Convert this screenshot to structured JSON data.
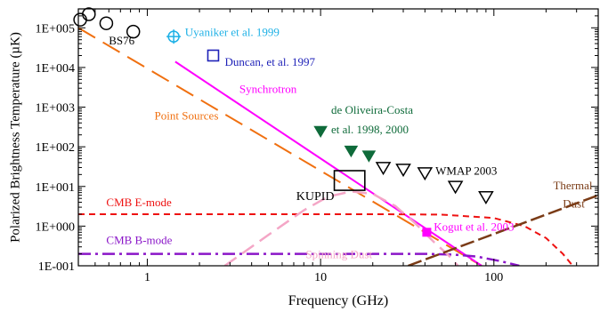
{
  "chart_data": {
    "type": "line",
    "xlabel": "Frequency (GHz)",
    "ylabel": "Polarized Brightness Temperature (µK)",
    "xscale": "log",
    "yscale": "log",
    "xlim": [
      0.4,
      400
    ],
    "ylim": [
      0.1,
      300000
    ],
    "grid": false,
    "x_ticks": [
      {
        "value": 1,
        "label": "1"
      },
      {
        "value": 10,
        "label": "10"
      },
      {
        "value": 100,
        "label": "100"
      }
    ],
    "y_ticks": [
      {
        "value": 100000,
        "label": "1E+005"
      },
      {
        "value": 10000,
        "label": "1E+004"
      },
      {
        "value": 1000,
        "label": "1E+003"
      },
      {
        "value": 100,
        "label": "1E+002"
      },
      {
        "value": 10,
        "label": "1E+001"
      },
      {
        "value": 1,
        "label": "1E+000"
      },
      {
        "value": 0.1,
        "label": "1E-001"
      }
    ],
    "series": [
      {
        "id": "point-sources",
        "color": "#f07010",
        "dash": "22,10",
        "width": 2,
        "points": [
          [
            0.4,
            100000
          ],
          [
            85,
            0.1
          ]
        ]
      },
      {
        "id": "synchrotron",
        "color": "#ff00ff",
        "dash": "",
        "width": 2,
        "points": [
          [
            1.45,
            14000
          ],
          [
            85,
            0.1
          ]
        ]
      },
      {
        "id": "cmb-e-mode",
        "color": "#ee1111",
        "dash": "7,5",
        "width": 2,
        "points": [
          [
            0.4,
            2
          ],
          [
            20,
            2
          ],
          [
            50,
            1.95
          ],
          [
            100,
            1.6
          ],
          [
            150,
            1.0
          ],
          [
            200,
            0.5
          ],
          [
            250,
            0.2
          ],
          [
            285,
            0.1
          ]
        ]
      },
      {
        "id": "cmb-b-mode",
        "color": "#8a16c8",
        "dash": "14,5,3,5",
        "width": 2.5,
        "points": [
          [
            0.4,
            0.2
          ],
          [
            40,
            0.2
          ],
          [
            60,
            0.19
          ],
          [
            80,
            0.17
          ],
          [
            110,
            0.13
          ],
          [
            140,
            0.1
          ]
        ]
      },
      {
        "id": "spinning-dust",
        "color": "#f4a6c6",
        "dash": "16,8",
        "width": 2.5,
        "points": [
          [
            2.8,
            0.1
          ],
          [
            5,
            0.6
          ],
          [
            8,
            2.5
          ],
          [
            11,
            5.5
          ],
          [
            15,
            7.5
          ],
          [
            20,
            6.5
          ],
          [
            27,
            3.2
          ],
          [
            35,
            1.2
          ],
          [
            45,
            0.4
          ],
          [
            55,
            0.18
          ],
          [
            62,
            0.1
          ]
        ]
      },
      {
        "id": "thermal-dust",
        "color": "#7a3b16",
        "dash": "16,5",
        "width": 2.5,
        "points": [
          [
            32,
            0.1
          ],
          [
            400,
            6
          ]
        ]
      }
    ],
    "markers": [
      {
        "id": "bs76-points",
        "shape": "circle-open",
        "color": "#000000",
        "size": 14,
        "points": [
          [
            0.41,
            160000
          ],
          [
            0.46,
            220000
          ],
          [
            0.58,
            130000
          ],
          [
            0.83,
            80000
          ]
        ]
      },
      {
        "id": "uyaniker-point",
        "shape": "circle-plus",
        "color": "#1fb1e6",
        "size": 12,
        "points": [
          [
            1.42,
            60000
          ]
        ]
      },
      {
        "id": "duncan-point",
        "shape": "square-open",
        "color": "#1f22b8",
        "size": 12,
        "points": [
          [
            2.4,
            20000
          ]
        ]
      },
      {
        "id": "de-oliveira-costa-points",
        "shape": "triangle-down-filled",
        "color": "#0f6b3a",
        "size": 13,
        "points": [
          [
            10,
            250
          ],
          [
            15,
            80
          ],
          [
            19,
            60
          ]
        ]
      },
      {
        "id": "wmap-points",
        "shape": "triangle-down-open",
        "color": "#000000",
        "size": 15,
        "points": [
          [
            23,
            30
          ],
          [
            30,
            27
          ],
          [
            40,
            22
          ],
          [
            60,
            10
          ],
          [
            90,
            5.5
          ]
        ]
      },
      {
        "id": "kupid-box",
        "shape": "rect-open",
        "color": "#000000",
        "xrange": [
          12,
          18
        ],
        "yrange": [
          8,
          25
        ]
      },
      {
        "id": "kogut-point",
        "shape": "square-filled",
        "color": "#ff00ff",
        "size": 9,
        "points": [
          [
            41,
            0.7
          ]
        ]
      }
    ],
    "annotations": [
      {
        "id": "bs76-label",
        "text": "BS76",
        "color": "#000000",
        "x": 0.6,
        "y": 38000,
        "anchor": "start",
        "size": 13
      },
      {
        "id": "uyaniker-label",
        "text": "Uyaniker et al. 1999",
        "color": "#1fb1e6",
        "x": 1.65,
        "y": 62000,
        "anchor": "start",
        "size": 13
      },
      {
        "id": "duncan-label",
        "text": "Duncan, et al. 1997",
        "color": "#1f22b8",
        "x": 2.8,
        "y": 11000,
        "anchor": "start",
        "size": 13
      },
      {
        "id": "synchrotron-label",
        "text": "Synchrotron",
        "color": "#ff00ff",
        "x": 3.4,
        "y": 2300,
        "anchor": "start",
        "size": 13
      },
      {
        "id": "point-sources-label",
        "text": "Point Sources",
        "color": "#f07010",
        "x": 1.1,
        "y": 480,
        "anchor": "start",
        "size": 13
      },
      {
        "id": "de-oliveira-costa-label-1",
        "text": "de Oliveira-Costa",
        "color": "#0f6b3a",
        "x": 11.5,
        "y": 680,
        "anchor": "start",
        "size": 13
      },
      {
        "id": "de-oliveira-costa-label-2",
        "text": "et al. 1998, 2000",
        "color": "#0f6b3a",
        "x": 11.5,
        "y": 220,
        "anchor": "start",
        "size": 13
      },
      {
        "id": "wmap-label",
        "text": "WMAP 2003",
        "color": "#000000",
        "x": 46,
        "y": 20,
        "anchor": "start",
        "size": 13
      },
      {
        "id": "kupid-label",
        "text": "KUPID",
        "color": "#000000",
        "x": 12,
        "y": 4.5,
        "anchor": "end",
        "size": 14
      },
      {
        "id": "cmb-e-mode-label",
        "text": "CMB E-mode",
        "color": "#ee1111",
        "x": 0.58,
        "y": 3.2,
        "anchor": "start",
        "size": 13
      },
      {
        "id": "cmb-b-mode-label",
        "text": "CMB B-mode",
        "color": "#8a16c8",
        "x": 0.58,
        "y": 0.35,
        "anchor": "start",
        "size": 13
      },
      {
        "id": "spinning-dust-label",
        "text": "Spinning Dust",
        "color": "#f4a6c6",
        "x": 8.2,
        "y": 0.155,
        "anchor": "start",
        "size": 13
      },
      {
        "id": "kogut-label",
        "text": "Kogut et al. 2003",
        "color": "#ff00ff",
        "x": 45,
        "y": 0.76,
        "anchor": "start",
        "size": 13
      },
      {
        "id": "thermal-dust-label-1",
        "text": "Thermal",
        "color": "#7a3b16",
        "x": 220,
        "y": 8.5,
        "anchor": "start",
        "size": 13
      },
      {
        "id": "thermal-dust-label-2",
        "text": "Dust",
        "color": "#7a3b16",
        "x": 250,
        "y": 2.9,
        "anchor": "start",
        "size": 13
      }
    ]
  }
}
